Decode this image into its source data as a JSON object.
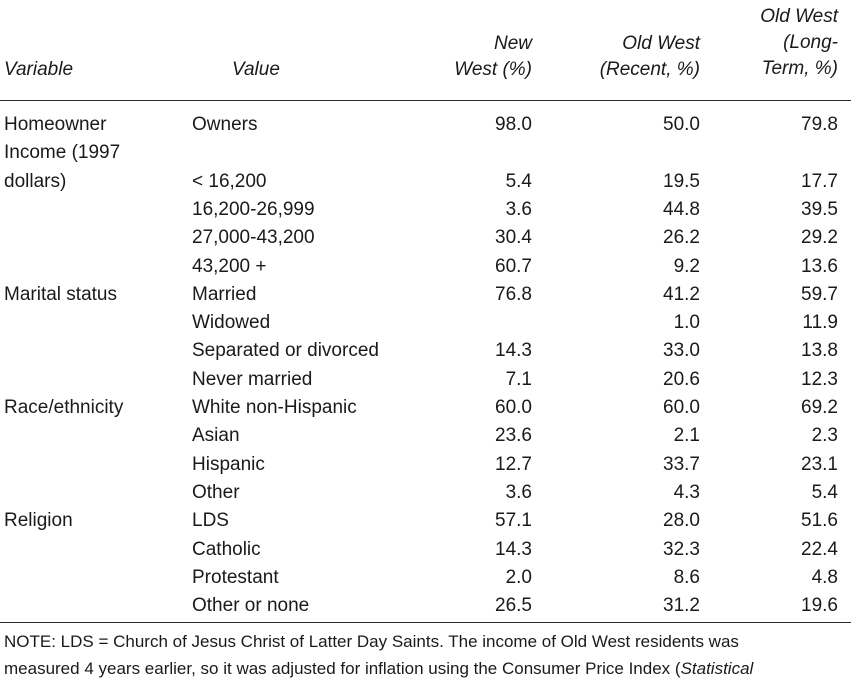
{
  "headers": {
    "variable": "Variable",
    "value": "Value",
    "new_west": [
      "New",
      "West (%)"
    ],
    "old_west_recent": [
      "Old West",
      "(Recent, %)"
    ],
    "old_west_long": [
      "Old West",
      "(Long-",
      "Term, %)"
    ]
  },
  "rows": [
    {
      "variable": "Homeowner",
      "value": "Owners",
      "nw": "98.0",
      "owr": "50.0",
      "owl": "79.8"
    },
    {
      "variable": "Income (1997",
      "value": "",
      "nw": "",
      "owr": "",
      "owl": ""
    },
    {
      "variable": "dollars)",
      "value": "< 16,200",
      "nw": "5.4",
      "owr": "19.5",
      "owl": "17.7"
    },
    {
      "variable": "",
      "value": "16,200-26,999",
      "nw": "3.6",
      "owr": "44.8",
      "owl": "39.5"
    },
    {
      "variable": "",
      "value": "27,000-43,200",
      "nw": "30.4",
      "owr": "26.2",
      "owl": "29.2"
    },
    {
      "variable": "",
      "value": "43,200 +",
      "nw": "60.7",
      "owr": "9.2",
      "owl": "13.6"
    },
    {
      "variable": "Marital status",
      "value": "Married",
      "nw": "76.8",
      "owr": "41.2",
      "owl": "59.7"
    },
    {
      "variable": "",
      "value": "Widowed",
      "nw": "",
      "owr": "1.0",
      "owl": "11.9"
    },
    {
      "variable": "",
      "value": "Separated or divorced",
      "nw": "14.3",
      "owr": "33.0",
      "owl": "13.8"
    },
    {
      "variable": "",
      "value": "Never married",
      "nw": "7.1",
      "owr": "20.6",
      "owl": "12.3"
    },
    {
      "variable": "Race/ethnicity",
      "value": "White non-Hispanic",
      "nw": "60.0",
      "owr": "60.0",
      "owl": "69.2"
    },
    {
      "variable": "",
      "value": "Asian",
      "nw": "23.6",
      "owr": "2.1",
      "owl": "2.3"
    },
    {
      "variable": "",
      "value": "Hispanic",
      "nw": "12.7",
      "owr": "33.7",
      "owl": "23.1"
    },
    {
      "variable": "",
      "value": "Other",
      "nw": "3.6",
      "owr": "4.3",
      "owl": "5.4"
    },
    {
      "variable": "Religion",
      "value": "LDS",
      "nw": "57.1",
      "owr": "28.0",
      "owl": "51.6"
    },
    {
      "variable": "",
      "value": "Catholic",
      "nw": "14.3",
      "owr": "32.3",
      "owl": "22.4"
    },
    {
      "variable": "",
      "value": "Protestant",
      "nw": "2.0",
      "owr": "8.6",
      "owl": "4.8"
    },
    {
      "variable": "",
      "value": "Other or none",
      "nw": "26.5",
      "owr": "31.2",
      "owl": "19.6"
    }
  ],
  "note": {
    "line1": "NOTE: LDS = Church of Jesus Christ of Latter Day Saints. The income of Old West residents was",
    "line2": "measured 4 years earlier, so it was adjusted for inflation using the Consumer Price Index (",
    "line2_italic": "Statistical"
  }
}
